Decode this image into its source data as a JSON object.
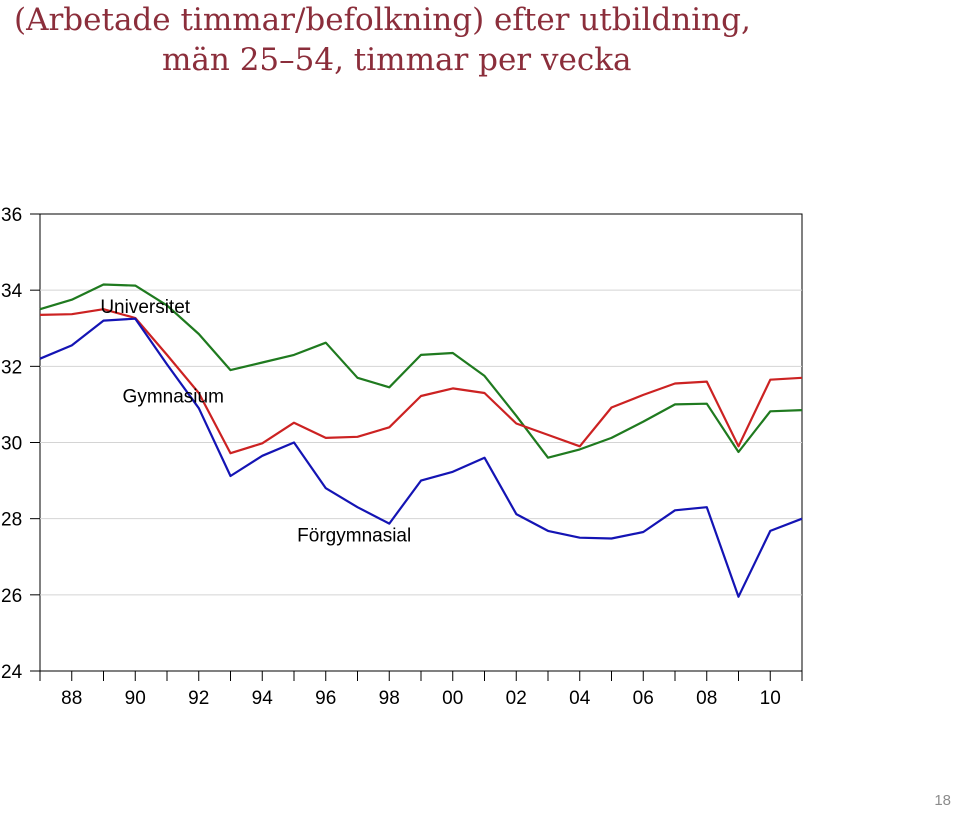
{
  "title_line1": "(Arbetade timmar/befolkning) efter utbildning,",
  "title_line2": "män 25–54, timmar per vecka",
  "page_number": "18",
  "chart_data": {
    "type": "line",
    "title": "(Arbetade timmar/befolkning) efter utbildning, män 25–54, timmar per vecka",
    "x": [
      1987,
      1988,
      1989,
      1990,
      1991,
      1992,
      1993,
      1994,
      1995,
      1996,
      1997,
      1998,
      1999,
      2000,
      2001,
      2002,
      2003,
      2004,
      2005,
      2006,
      2007,
      2008,
      2009,
      2010,
      2011
    ],
    "xticks": [
      1988,
      1990,
      1992,
      1994,
      1996,
      1998,
      2000,
      2002,
      2004,
      2006,
      2008,
      2010
    ],
    "xtick_labels": [
      "88",
      "90",
      "92",
      "94",
      "96",
      "98",
      "00",
      "02",
      "04",
      "06",
      "08",
      "10"
    ],
    "xlim": [
      1987,
      2011
    ],
    "ylim": [
      24,
      36
    ],
    "yticks": [
      24,
      26,
      28,
      30,
      32,
      34,
      36
    ],
    "grid": true,
    "series": [
      {
        "name": "Universitet",
        "color": "#1f7a1f",
        "values": [
          33.5,
          33.75,
          34.15,
          34.12,
          33.6,
          32.85,
          31.9,
          32.1,
          32.3,
          32.62,
          31.7,
          31.45,
          32.3,
          32.35,
          31.75,
          30.7,
          29.6,
          29.82,
          30.12,
          30.55,
          31.0,
          31.02,
          29.75,
          30.82,
          30.85
        ]
      },
      {
        "name": "Gymnasium",
        "color": "#cc2222",
        "values": [
          33.35,
          33.37,
          33.5,
          33.27,
          32.3,
          31.3,
          29.72,
          29.98,
          30.52,
          30.12,
          30.15,
          30.4,
          31.22,
          31.42,
          31.3,
          30.5,
          30.2,
          29.9,
          30.92,
          31.25,
          31.55,
          31.6,
          29.9,
          31.65,
          31.7
        ]
      },
      {
        "name": "Förgymnasial",
        "color": "#1414b4",
        "values": [
          32.2,
          32.55,
          33.2,
          33.25,
          32.05,
          30.9,
          29.12,
          29.65,
          30.0,
          28.8,
          28.3,
          27.87,
          29.0,
          29.23,
          29.6,
          28.12,
          27.68,
          27.5,
          27.48,
          27.65,
          28.22,
          28.3,
          25.95,
          27.68,
          28.0
        ]
      }
    ],
    "annotations": [
      {
        "text": "Universitet",
        "x": 1988.9,
        "y": 33.4
      },
      {
        "text": "Gymnasium",
        "x": 1989.6,
        "y": 31.05
      },
      {
        "text": "Förgymnasial",
        "x": 1995.1,
        "y": 27.4
      }
    ]
  }
}
